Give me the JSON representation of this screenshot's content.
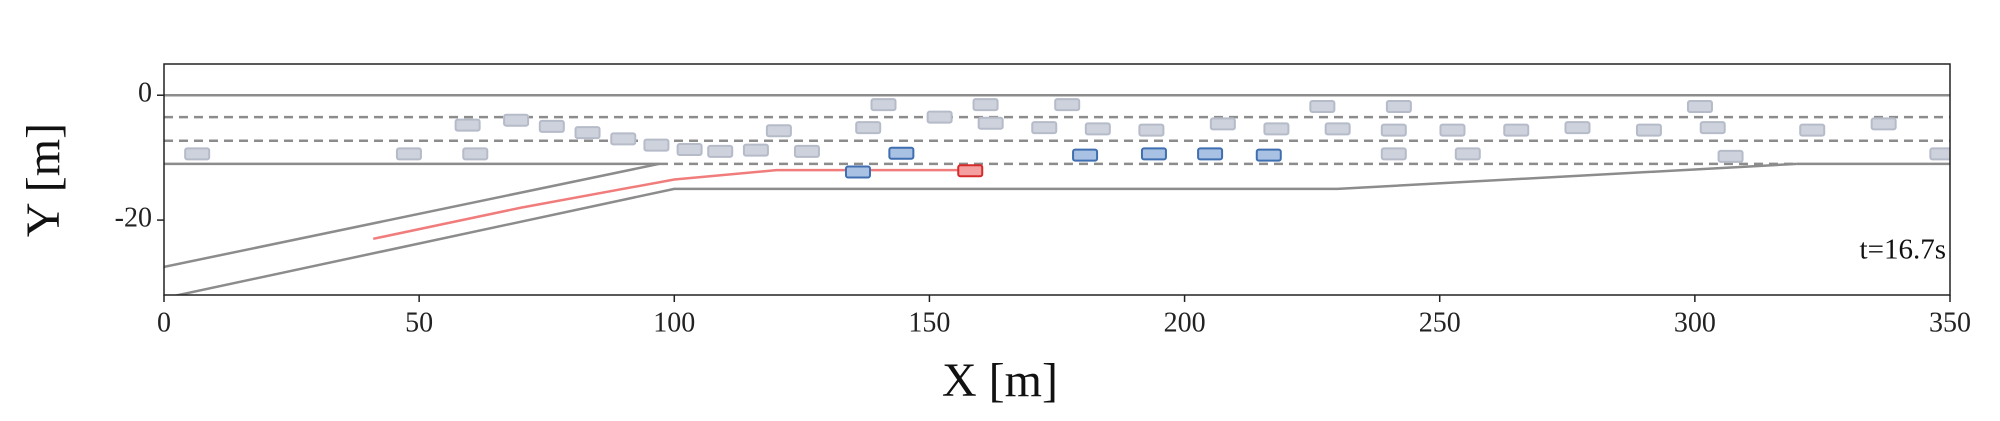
{
  "chart_data": {
    "type": "scatter",
    "xlabel": "X [m]",
    "ylabel": "Y [m]",
    "annotation": "t=16.7s",
    "xlim": [
      0,
      350
    ],
    "ylim": [
      -32,
      5
    ],
    "xticks": [
      0,
      50,
      100,
      150,
      200,
      250,
      300,
      350
    ],
    "yticks": [
      0,
      -20
    ],
    "series": [
      {
        "mode": "line",
        "color": "#8c8c8c",
        "dash": false,
        "x": [
          0,
          350
        ],
        "y": [
          0,
          0
        ]
      },
      {
        "mode": "line",
        "color": "#8c8c8c",
        "dash": true,
        "x": [
          0,
          350
        ],
        "y": [
          -3.5,
          -3.5
        ]
      },
      {
        "mode": "line",
        "color": "#8c8c8c",
        "dash": true,
        "x": [
          0,
          350
        ],
        "y": [
          -7.3,
          -7.3
        ]
      },
      {
        "mode": "line",
        "color": "#8c8c8c",
        "dash": false,
        "x": [
          0,
          97
        ],
        "y": [
          -11,
          -11
        ]
      },
      {
        "mode": "line",
        "color": "#8c8c8c",
        "dash": true,
        "x": [
          97,
          320
        ],
        "y": [
          -11,
          -11
        ]
      },
      {
        "mode": "line",
        "color": "#8c8c8c",
        "dash": false,
        "x": [
          320,
          350
        ],
        "y": [
          -11,
          -11
        ]
      },
      {
        "mode": "line",
        "color": "#8c8c8c",
        "dash": false,
        "x": [
          0,
          97
        ],
        "y": [
          -27.5,
          -11
        ]
      },
      {
        "mode": "line",
        "color": "#8c8c8c",
        "dash": false,
        "x": [
          0,
          100,
          230,
          320
        ],
        "y": [
          -32.5,
          -15,
          -15,
          -11
        ]
      },
      {
        "mode": "line",
        "color": "#f07c7c",
        "dash": false,
        "x": [
          41,
          70,
          100,
          120,
          157
        ],
        "y": [
          -23,
          -18,
          -13.5,
          -12,
          -12
        ]
      },
      {
        "mode": "marker",
        "color": "#cdd2dc",
        "edgecolor": "#b5bbc8",
        "x": [
          141,
          161,
          177,
          227,
          242,
          301,
          59.5,
          69,
          76,
          83,
          90,
          96.5,
          103,
          109,
          116,
          120.5,
          126,
          138,
          152,
          162,
          172.5,
          183,
          193.5,
          207.5,
          218,
          230,
          241,
          252.5,
          265,
          277,
          291,
          303.5,
          323,
          337,
          6.5,
          48,
          61,
          241,
          255.5,
          307,
          348.5
        ],
        "y": [
          -1.5,
          -1.5,
          -1.5,
          -1.8,
          -1.8,
          -1.8,
          -4.8,
          -4,
          -5,
          -6,
          -7,
          -8,
          -8.7,
          -9,
          -8.8,
          -5.7,
          -9,
          -5.2,
          -3.5,
          -4.5,
          -5.2,
          -5.4,
          -5.6,
          -4.6,
          -5.4,
          -5.4,
          -5.6,
          -5.6,
          -5.6,
          -5.2,
          -5.6,
          -5.2,
          -5.6,
          -4.6,
          -9.4,
          -9.4,
          -9.4,
          -9.4,
          -9.4,
          -9.8,
          -9.4
        ]
      },
      {
        "mode": "marker",
        "color": "#a9c1e3",
        "edgecolor": "#3f6fb0",
        "x": [
          144.5,
          180.5,
          194,
          205,
          216.5,
          136
        ],
        "y": [
          -9.3,
          -9.6,
          -9.4,
          -9.4,
          -9.6,
          -12.3
        ]
      },
      {
        "mode": "marker",
        "color": "#f4a0a0",
        "edgecolor": "#d42a2a",
        "x": [
          158
        ],
        "y": [
          -12.1
        ]
      }
    ]
  }
}
